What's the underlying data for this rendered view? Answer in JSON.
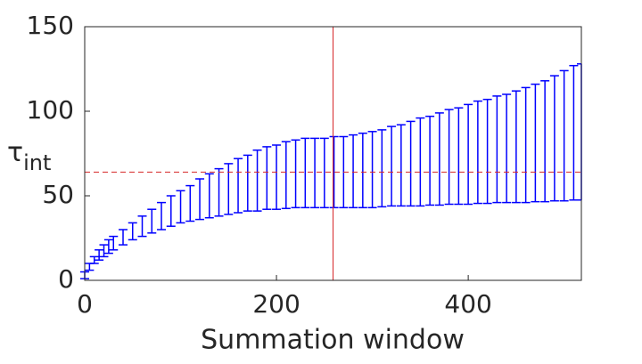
{
  "chart_data": {
    "type": "errorbar",
    "xlabel": "Summation window",
    "ylabel": "τ",
    "ylabel_subscript": "int",
    "x": [
      0,
      5,
      10,
      15,
      20,
      25,
      30,
      40,
      50,
      60,
      70,
      80,
      90,
      100,
      110,
      120,
      130,
      140,
      150,
      160,
      170,
      180,
      190,
      200,
      210,
      220,
      230,
      240,
      250,
      260,
      270,
      280,
      290,
      300,
      310,
      320,
      330,
      340,
      350,
      360,
      370,
      380,
      390,
      400,
      410,
      420,
      430,
      440,
      450,
      460,
      470,
      480,
      490,
      500,
      510,
      518
    ],
    "values": [
      3,
      8,
      12,
      15,
      17.5,
      20,
      22,
      25.5,
      29,
      32,
      35,
      38,
      41,
      43.5,
      45.5,
      48,
      50,
      52,
      54,
      56,
      57.5,
      59,
      60.5,
      61,
      62.25,
      63,
      63.5,
      63.5,
      63.5,
      64,
      64,
      64.5,
      65,
      65.5,
      66.25,
      67.5,
      68,
      69,
      70,
      70.75,
      71.75,
      73,
      73.5,
      74.5,
      75.75,
      76.25,
      77.5,
      78,
      79,
      80,
      81.25,
      82.25,
      84,
      85.5,
      87.25,
      87.75
    ],
    "errors": [
      2,
      2,
      2,
      3,
      3.5,
      4,
      4,
      4.5,
      5,
      6,
      7,
      8,
      9,
      9.5,
      10.5,
      12,
      13,
      14,
      15,
      16,
      16.5,
      18,
      18.5,
      19,
      19.75,
      20,
      20.5,
      20.5,
      20.5,
      21,
      21,
      21.5,
      22,
      22.5,
      22.75,
      23.5,
      24,
      25,
      26,
      26.25,
      27.25,
      28,
      28.5,
      29.5,
      30.25,
      30.75,
      31.5,
      32,
      33,
      34,
      34.75,
      35.75,
      37,
      38.5,
      39.75,
      40.25
    ],
    "color": "#0000ff",
    "xlim": [
      0,
      518
    ],
    "ylim": [
      0,
      150
    ],
    "xticks": [
      0,
      200,
      400
    ],
    "yticks": [
      0,
      50,
      100,
      150
    ],
    "vline": {
      "x": 259,
      "color": "#d62728"
    },
    "hline": {
      "y": 64,
      "color": "#d62728"
    }
  }
}
